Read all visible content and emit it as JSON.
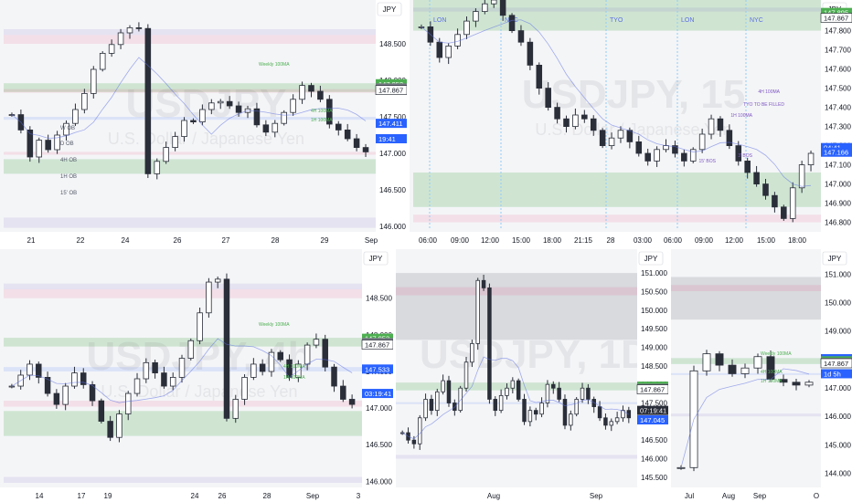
{
  "colors": {
    "background": "#ffffff",
    "candle_body": "#2a2e39",
    "axis_text": "#131722",
    "price_tag_bg": "#ffffff",
    "tag_green": "#4caf50",
    "tag_grey": "#787b86",
    "tag_blue": "#2962ff",
    "zone_green": "rgba(76,175,80,0.22)",
    "zone_grey": "rgba(120,123,134,0.22)",
    "zone_pink": "rgba(233,30,99,0.10)",
    "zone_purple": "rgba(126,87,194,0.12)",
    "zone_blue": "rgba(41,98,255,0.12)",
    "ma_line": "#5b6ee1",
    "session_line": "#90caf9"
  },
  "chart_data": [
    {
      "type": "candlestick",
      "panel": "top-left",
      "currency_label": "JPY",
      "watermark_symbol": "USDJPY",
      "watermark_desc": "U.S. Dollar / Japanese Yen",
      "y_ticks": [
        "148.500",
        "148.000",
        "147.500",
        "147.000",
        "146.500",
        "146.000"
      ],
      "y_range": [
        145.95,
        148.85
      ],
      "x_ticks": [
        "21",
        "22",
        "24",
        "26",
        "27",
        "28",
        "29",
        "Sep"
      ],
      "closes": [
        147.53,
        147.32,
        146.95,
        147.18,
        147.05,
        147.25,
        147.41,
        147.6,
        147.82,
        148.15,
        148.37,
        148.49,
        148.65,
        148.72,
        148.71,
        146.72,
        146.89,
        147.08,
        147.23,
        147.45,
        147.43,
        147.6,
        147.69,
        147.71,
        147.65,
        147.56,
        147.61,
        147.39,
        147.29,
        147.41,
        147.56,
        147.74,
        147.93,
        147.85,
        147.74,
        147.4,
        147.32,
        147.2,
        147.08,
        147.02
      ],
      "legend": [
        "W OB",
        "D OB",
        "4H OB",
        "1H OB",
        "15' OB"
      ],
      "zone_labels": [
        "Weekly 100MA",
        "4H 100MA",
        "1H 100MA"
      ],
      "price_tags": [
        {
          "text": "147.953",
          "color": "tag_green",
          "price": 147.953
        },
        {
          "text": "147.895",
          "color": "tag_grey",
          "price": 147.895
        },
        {
          "text": "147.867",
          "color": "price_tag_bg",
          "price": 147.867
        },
        {
          "text": "147.411",
          "color": "tag_blue",
          "price": 147.411
        },
        {
          "text": "19:41",
          "color": "tag_blue",
          "price": 147.2
        }
      ]
    },
    {
      "type": "candlestick",
      "panel": "top-right",
      "currency_label": "JPY",
      "watermark_symbol": "USDJPY, 15",
      "watermark_desc": "U.S. Dollar / Japanese Yen",
      "y_ticks": [
        "147.800",
        "147.700",
        "147.600",
        "147.500",
        "147.400",
        "147.300",
        "147.200",
        "147.100",
        "147.000",
        "146.900",
        "146.800"
      ],
      "y_range": [
        146.76,
        147.96
      ],
      "x_ticks": [
        "06:00",
        "09:00",
        "12:00",
        "15:00",
        "18:00",
        "21:15",
        "28",
        "03:00",
        "06:00",
        "09:00",
        "12:00",
        "15:00",
        "18:00"
      ],
      "closes": [
        147.82,
        147.74,
        147.66,
        147.72,
        147.78,
        147.85,
        147.9,
        147.94,
        147.96,
        147.88,
        147.8,
        147.74,
        147.62,
        147.5,
        147.4,
        147.34,
        147.3,
        147.36,
        147.34,
        147.28,
        147.2,
        147.24,
        147.28,
        147.22,
        147.16,
        147.12,
        147.18,
        147.2,
        147.16,
        147.12,
        147.18,
        147.26,
        147.34,
        147.28,
        147.2,
        147.12,
        147.06,
        147.0,
        146.94,
        146.88,
        146.82,
        146.98,
        147.1,
        147.16
      ],
      "session_labels": [
        "LON",
        "NYC",
        "TYO",
        "LON",
        "NYC"
      ],
      "annotations": [
        "TYO TO BE FILLED",
        "1H 100MA",
        "4H 100MA",
        "3' BOS",
        "15' BOS"
      ],
      "price_tags": [
        {
          "text": "147.895",
          "color": "tag_green",
          "price": 147.895
        },
        {
          "text": "147.867",
          "color": "price_tag_bg",
          "price": 147.867
        },
        {
          "text": "04:41",
          "color": "tag_blue",
          "price": 147.19
        },
        {
          "text": "147.166",
          "color": "tag_blue",
          "price": 147.166
        }
      ]
    },
    {
      "type": "candlestick",
      "panel": "bottom-left",
      "currency_label": "JPY",
      "watermark_symbol": "USDJPY, 4h",
      "watermark_desc": "U.S. Dollar / Japanese Yen",
      "y_ticks": [
        "148.500",
        "148.000",
        "147.500",
        "147.000",
        "146.500",
        "146.000"
      ],
      "y_range": [
        145.93,
        148.92
      ],
      "x_ticks": [
        "14",
        "17",
        "19",
        "24",
        "26",
        "28",
        "Sep",
        "3"
      ],
      "closes": [
        147.3,
        147.45,
        147.6,
        147.42,
        147.2,
        147.05,
        147.3,
        147.48,
        147.32,
        147.1,
        146.82,
        146.6,
        146.92,
        147.2,
        147.4,
        147.62,
        147.48,
        147.3,
        147.42,
        147.68,
        147.92,
        148.3,
        148.72,
        148.76,
        146.86,
        147.12,
        147.42,
        147.6,
        147.5,
        147.76,
        147.66,
        147.42,
        147.6,
        147.86,
        147.94,
        147.56,
        147.3,
        147.12,
        147.05
      ],
      "zone_labels": [
        "Weekly 100MA",
        "4H 100MA",
        "1H 100MA"
      ],
      "price_tags": [
        {
          "text": "147.953",
          "color": "tag_green",
          "price": 147.953
        },
        {
          "text": "147.895",
          "color": "tag_grey",
          "price": 147.895
        },
        {
          "text": "147.867",
          "color": "price_tag_bg",
          "price": 147.867
        },
        {
          "text": "147.533",
          "color": "tag_blue",
          "price": 147.533
        },
        {
          "text": "03:19:41",
          "color": "tag_blue",
          "price": 147.2
        }
      ]
    },
    {
      "type": "candlestick",
      "panel": "bottom-middle",
      "currency_label": "JPY",
      "watermark_symbol": "USDJPY, 1D",
      "watermark_desc": "",
      "y_ticks": [
        "151.000",
        "150.500",
        "150.000",
        "149.500",
        "149.000",
        "148.500",
        "148.000",
        "147.500",
        "147.000",
        "146.500",
        "146.000",
        "145.500"
      ],
      "y_range": [
        145.3,
        151.2
      ],
      "x_ticks": [
        "Aug",
        "Sep"
      ],
      "closes": [
        146.7,
        146.5,
        146.4,
        147.1,
        147.6,
        147.3,
        147.8,
        148.1,
        147.5,
        147.3,
        147.9,
        148.6,
        149.1,
        150.8,
        150.6,
        147.6,
        147.3,
        147.7,
        147.9,
        148.1,
        147.6,
        147.0,
        147.3,
        147.2,
        147.5,
        148.0,
        147.9,
        147.6,
        146.9,
        147.2,
        147.6,
        147.9,
        147.6,
        147.4,
        147.1,
        146.9,
        147.0,
        147.1,
        147.3,
        147.1
      ],
      "price_tags": [
        {
          "text": "147.953",
          "color": "tag_green",
          "price": 147.953
        },
        {
          "text": "147.895",
          "color": "tag_grey",
          "price": 147.895
        },
        {
          "text": "147.867",
          "color": "price_tag_bg",
          "price": 147.867
        },
        {
          "text": "07:19:41",
          "color": "candle_body",
          "price": 147.3
        },
        {
          "text": "147.045",
          "color": "tag_blue",
          "price": 147.045
        }
      ]
    },
    {
      "type": "candlestick",
      "panel": "bottom-right",
      "currency_label": "JPY",
      "watermark_symbol": "",
      "watermark_desc": "",
      "y_ticks": [
        "151.000",
        "150.000",
        "149.000",
        "148.000",
        "147.000",
        "146.000",
        "145.000",
        "144.000"
      ],
      "y_range": [
        143.6,
        151.3
      ],
      "x_ticks": [
        "Jul",
        "Aug",
        "Sep",
        "O"
      ],
      "closes": [
        144.2,
        147.6,
        148.2,
        147.8,
        147.5,
        147.7,
        148.1,
        147.3,
        147.2,
        147.1,
        147.2
      ],
      "zone_labels": [
        "Weekly 100MA",
        "4H 100MA",
        "1H 100MA"
      ],
      "price_tags": [
        {
          "text": "148.027",
          "color": "tag_blue",
          "price": 148.027
        },
        {
          "text": "147.953",
          "color": "tag_green",
          "price": 147.953
        },
        {
          "text": "147.895",
          "color": "tag_grey",
          "price": 147.895
        },
        {
          "text": "147.867",
          "color": "price_tag_bg",
          "price": 147.867
        },
        {
          "text": "1d 5h",
          "color": "tag_blue",
          "price": 147.5
        }
      ]
    }
  ]
}
